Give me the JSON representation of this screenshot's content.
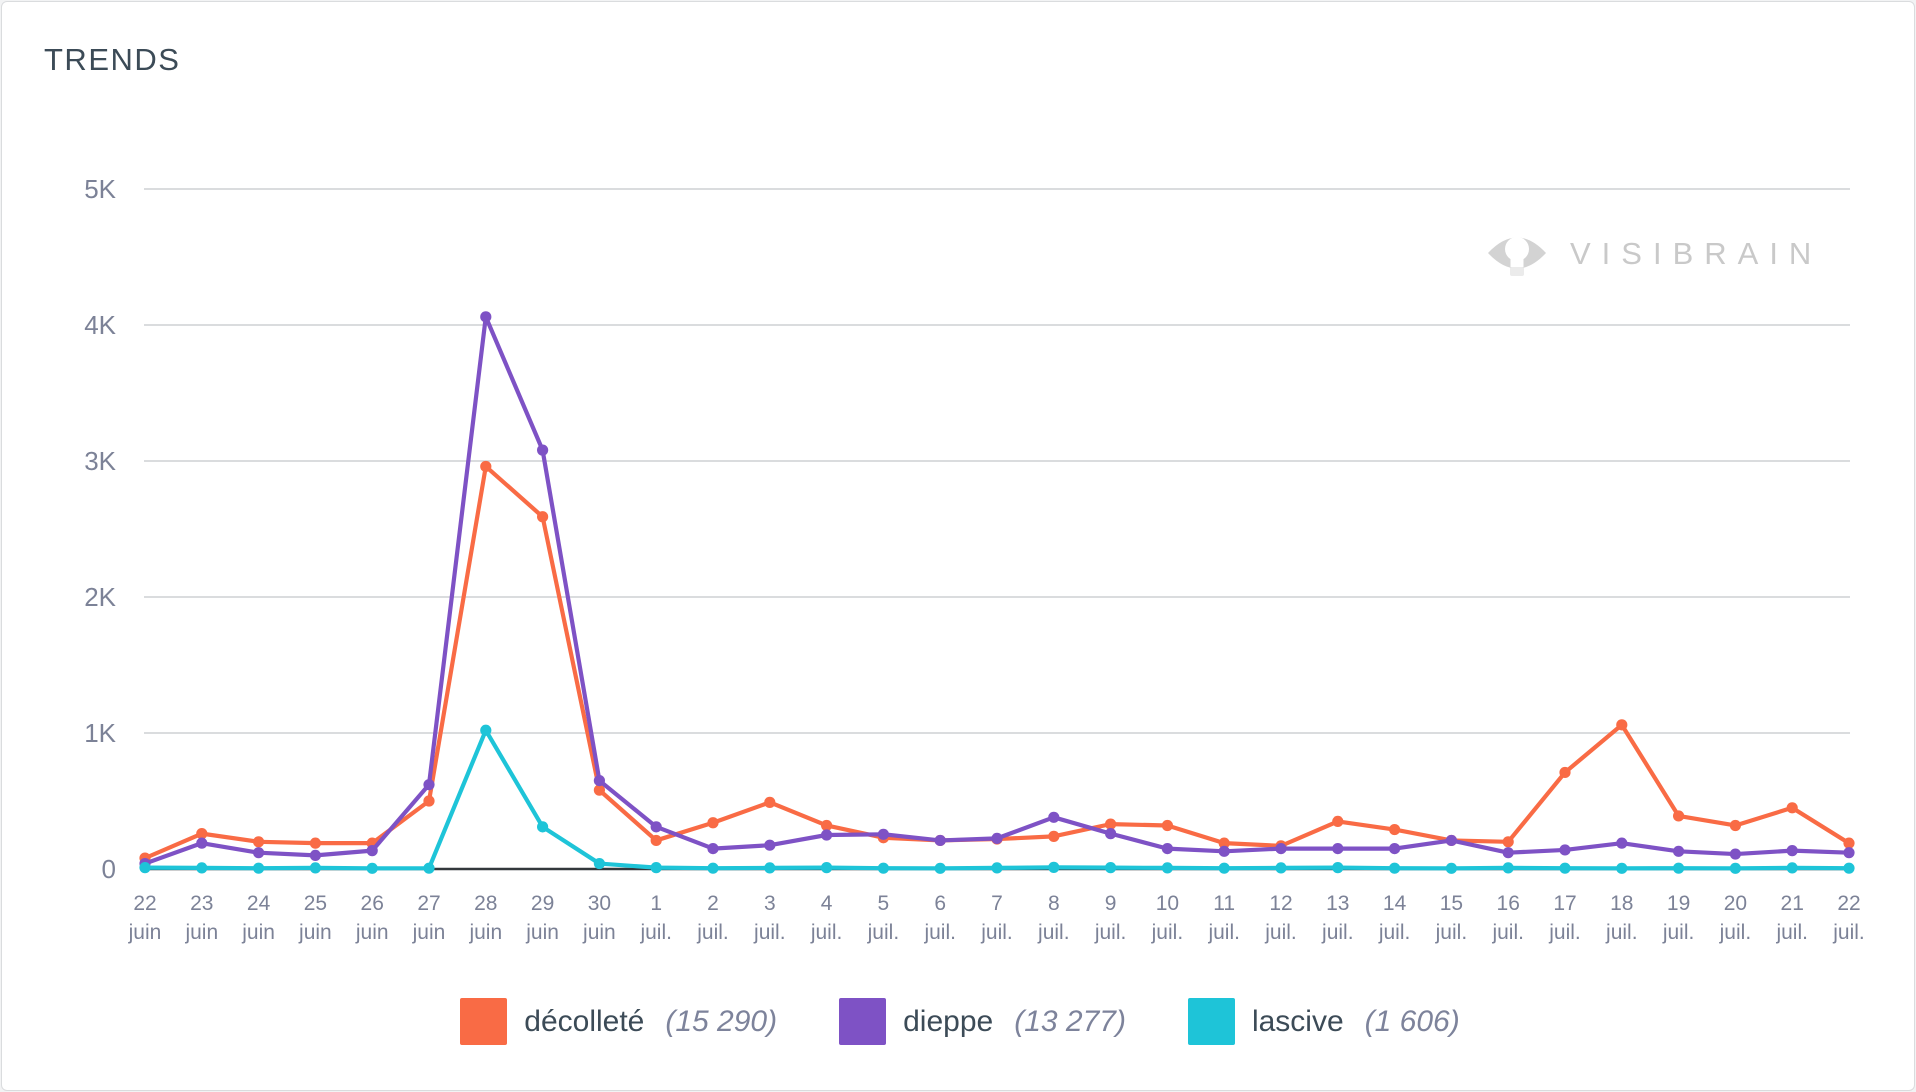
{
  "header": {
    "title": "TRENDS"
  },
  "watermark": {
    "brand": "VISIBRAIN"
  },
  "legend": {
    "items": [
      {
        "label": "décolleté",
        "count_label": "(15 290)"
      },
      {
        "label": "dieppe",
        "count_label": "(13 277)"
      },
      {
        "label": "lascive",
        "count_label": "(1 606)"
      }
    ]
  },
  "chart_data": {
    "type": "line",
    "title": "TRENDS",
    "xlabel": "",
    "ylabel": "",
    "ylim": [
      0,
      5000
    ],
    "ytick_values": [
      0,
      1000,
      2000,
      3000,
      4000,
      5000
    ],
    "ytick_labels": [
      "0",
      "1K",
      "2K",
      "3K",
      "4K",
      "5K"
    ],
    "grid": true,
    "legend_position": "bottom",
    "x_days": [
      "22",
      "23",
      "24",
      "25",
      "26",
      "27",
      "28",
      "29",
      "30",
      "1",
      "2",
      "3",
      "4",
      "5",
      "6",
      "7",
      "8",
      "9",
      "10",
      "11",
      "12",
      "13",
      "14",
      "15",
      "16",
      "17",
      "18",
      "19",
      "20",
      "21",
      "22"
    ],
    "x_months": [
      "juin",
      "juin",
      "juin",
      "juin",
      "juin",
      "juin",
      "juin",
      "juin",
      "juin",
      "juil.",
      "juil.",
      "juil.",
      "juil.",
      "juil.",
      "juil.",
      "juil.",
      "juil.",
      "juil.",
      "juil.",
      "juil.",
      "juil.",
      "juil.",
      "juil.",
      "juil.",
      "juil.",
      "juil.",
      "juil.",
      "juil.",
      "juil.",
      "juil.",
      "juil."
    ],
    "series": [
      {
        "name": "décolleté",
        "total": 15290,
        "count_label": "(15 290)",
        "color": "#F96B45",
        "values": [
          80,
          260,
          200,
          190,
          190,
          500,
          2960,
          2590,
          580,
          210,
          340,
          490,
          320,
          230,
          210,
          220,
          240,
          330,
          320,
          190,
          170,
          350,
          290,
          210,
          200,
          710,
          1060,
          390,
          320,
          450,
          190
        ]
      },
      {
        "name": "dieppe",
        "total": 13277,
        "count_label": "(13 277)",
        "color": "#7E52C5",
        "values": [
          40,
          190,
          120,
          100,
          135,
          620,
          4060,
          3080,
          650,
          310,
          150,
          175,
          250,
          255,
          210,
          225,
          380,
          260,
          150,
          130,
          150,
          150,
          150,
          210,
          120,
          140,
          190,
          130,
          110,
          135,
          120
        ]
      },
      {
        "name": "lascive",
        "total": 1606,
        "count_label": "(1 606)",
        "color": "#1EC4D8",
        "values": [
          10,
          8,
          6,
          8,
          5,
          6,
          1020,
          310,
          40,
          10,
          6,
          8,
          10,
          6,
          5,
          8,
          12,
          10,
          8,
          6,
          8,
          10,
          6,
          5,
          8,
          6,
          5,
          6,
          5,
          8,
          6
        ]
      }
    ],
    "style": {
      "grid_color": "#CDD0D4",
      "zero_axis_color": "#33383C",
      "tick_label_color": "#7C8297",
      "title_color": "#3C4B57",
      "watermark_color": "#C9C9C9"
    }
  }
}
